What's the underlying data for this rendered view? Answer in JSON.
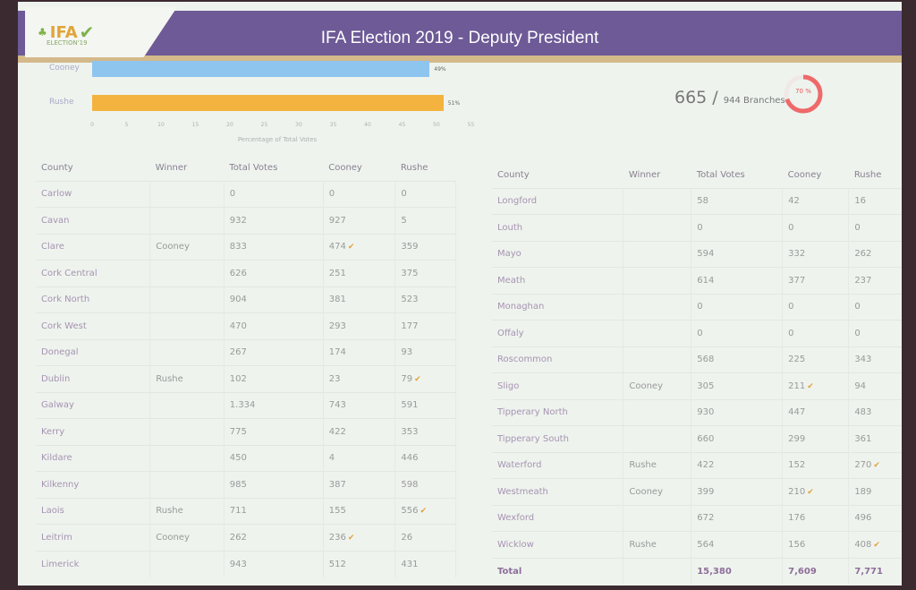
{
  "header": {
    "title": "IFA Election 2019 - Deputy President",
    "logo_text": "IFA",
    "logo_sub": "ELECTION'19"
  },
  "stats": {
    "counted": "665 /",
    "total": "944 Branches",
    "percent_label": "70 %",
    "percent": 70
  },
  "chart_data": {
    "type": "bar",
    "orientation": "horizontal",
    "categories": [
      "Cooney",
      "Rushe"
    ],
    "values": [
      49,
      51
    ],
    "data_labels": [
      "49%",
      "51%"
    ],
    "colors": [
      "#8ec5ef",
      "#f3b33e"
    ],
    "xlabel": "Percentage of Total Votes",
    "xlim": [
      0,
      55
    ],
    "xticks": [
      "0",
      "5",
      "10",
      "15",
      "20",
      "25",
      "30",
      "35",
      "40",
      "45",
      "50",
      "55"
    ]
  },
  "table": {
    "headers": [
      "County",
      "Winner",
      "Total Votes",
      "Cooney",
      "Rushe"
    ],
    "left": [
      [
        "Carlow",
        "",
        "0",
        "0",
        "0"
      ],
      [
        "Cavan",
        "",
        "932",
        "927",
        "5"
      ],
      [
        "Clare",
        "Cooney",
        "833",
        "474",
        "359"
      ],
      [
        "Cork Central",
        "",
        "626",
        "251",
        "375"
      ],
      [
        "Cork North",
        "",
        "904",
        "381",
        "523"
      ],
      [
        "Cork West",
        "",
        "470",
        "293",
        "177"
      ],
      [
        "Donegal",
        "",
        "267",
        "174",
        "93"
      ],
      [
        "Dublin",
        "Rushe",
        "102",
        "23",
        "79"
      ],
      [
        "Galway",
        "",
        "1.334",
        "743",
        "591"
      ],
      [
        "Kerry",
        "",
        "775",
        "422",
        "353"
      ],
      [
        "Kildare",
        "",
        "450",
        "4",
        "446"
      ],
      [
        "Kilkenny",
        "",
        "985",
        "387",
        "598"
      ],
      [
        "Laois",
        "Rushe",
        "711",
        "155",
        "556"
      ],
      [
        "Leitrim",
        "Cooney",
        "262",
        "236",
        "26"
      ],
      [
        "Limerick",
        "",
        "943",
        "512",
        "431"
      ]
    ],
    "right": [
      [
        "Longford",
        "",
        "58",
        "42",
        "16"
      ],
      [
        "Louth",
        "",
        "0",
        "0",
        "0"
      ],
      [
        "Mayo",
        "",
        "594",
        "332",
        "262"
      ],
      [
        "Meath",
        "",
        "614",
        "377",
        "237"
      ],
      [
        "Monaghan",
        "",
        "0",
        "0",
        "0"
      ],
      [
        "Offaly",
        "",
        "0",
        "0",
        "0"
      ],
      [
        "Roscommon",
        "",
        "568",
        "225",
        "343"
      ],
      [
        "Sligo",
        "Cooney",
        "305",
        "211",
        "94"
      ],
      [
        "Tipperary North",
        "",
        "930",
        "447",
        "483"
      ],
      [
        "Tipperary South",
        "",
        "660",
        "299",
        "361"
      ],
      [
        "Waterford",
        "Rushe",
        "422",
        "152",
        "270"
      ],
      [
        "Westmeath",
        "Cooney",
        "399",
        "210",
        "189"
      ],
      [
        "Wexford",
        "",
        "672",
        "176",
        "496"
      ],
      [
        "Wicklow",
        "Rushe",
        "564",
        "156",
        "408"
      ],
      [
        "Total",
        "",
        "15,380",
        "7,609",
        "7,771"
      ]
    ]
  }
}
